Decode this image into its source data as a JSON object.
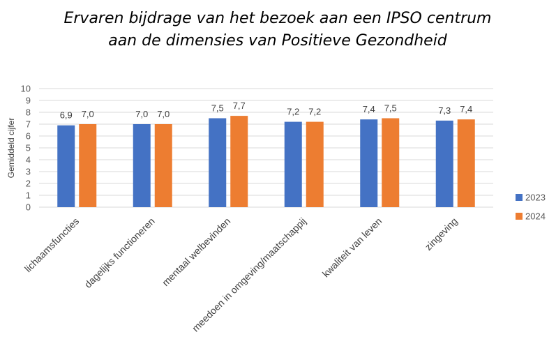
{
  "chart_data": {
    "type": "bar",
    "title_lines": [
      "Ervaren bijdrage van het bezoek aan een IPSO centrum",
      "aan de dimensies van Positieve Gezondheid"
    ],
    "xlabel": "",
    "ylabel": "Gemiddeld cijfer",
    "ylim": [
      0,
      10
    ],
    "yticks": [
      0,
      1,
      2,
      3,
      4,
      5,
      6,
      7,
      8,
      9,
      10
    ],
    "grid": true,
    "legend_position": "right",
    "categories": [
      "lichaamsfuncties",
      "dagelijks functioneren",
      "mentaal welbevinden",
      "meedoen in omgeving/maatschappij",
      "kwaliteit van leven",
      "zingeving"
    ],
    "series": [
      {
        "name": "2023",
        "color": "#4472c4",
        "values": [
          6.9,
          7.0,
          7.5,
          7.2,
          7.4,
          7.3
        ],
        "labels": [
          "6,9",
          "7,0",
          "7,5",
          "7,2",
          "7,4",
          "7,3"
        ]
      },
      {
        "name": "2024",
        "color": "#ed7d31",
        "values": [
          7.0,
          7.0,
          7.7,
          7.2,
          7.5,
          7.4
        ],
        "labels": [
          "7,0",
          "7,0",
          "7,7",
          "7,2",
          "7,5",
          "7,4"
        ]
      }
    ]
  }
}
